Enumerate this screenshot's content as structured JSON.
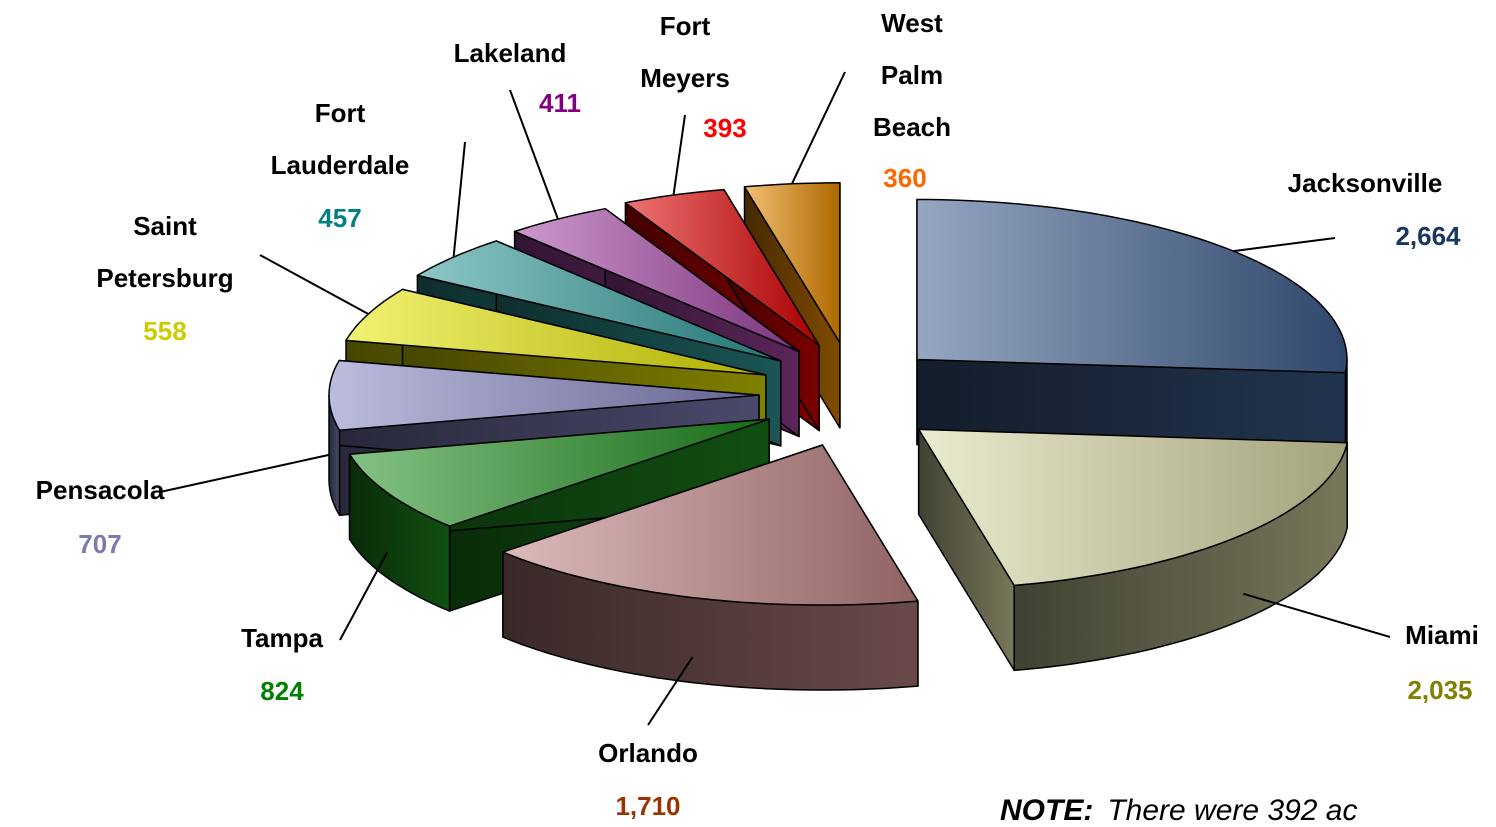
{
  "chart_data": {
    "type": "pie3d",
    "categories": [
      "Jacksonville",
      "Miami",
      "Orlando",
      "Tampa",
      "Pensacola",
      "Saint Petersburg",
      "Fort Lauderdale",
      "Lakeland",
      "Fort Meyers",
      "West Palm Beach"
    ],
    "values": [
      2664,
      2035,
      1710,
      824,
      707,
      558,
      457,
      411,
      393,
      360
    ],
    "value_labels": [
      "2,664",
      "2,035",
      "1,710",
      "824",
      "707",
      "558",
      "457",
      "411",
      "393",
      "360"
    ],
    "colors": [
      "#3e5f8e",
      "#d9d9a6",
      "#c08484",
      "#1f8f1f",
      "#8585c2",
      "#e8e800",
      "#2f9a9a",
      "#a545a5",
      "#e00000",
      "#e88a00"
    ],
    "label_colors": [
      "#17375e",
      "#7f7f00",
      "#993300",
      "#008000",
      "#7a7ab0",
      "#cccc00",
      "#008080",
      "#800080",
      "#ff0000",
      "#ff6600"
    ],
    "note": {
      "label": "NOTE:",
      "text": "There were 392 ac"
    }
  }
}
